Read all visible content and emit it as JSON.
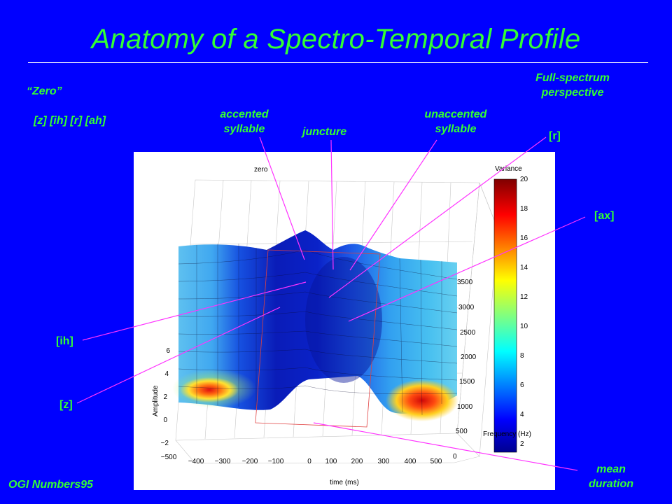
{
  "title": "Anatomy of a Spectro-Temporal Profile",
  "labels": {
    "zero": "“Zero”",
    "phonemes": "[z] [ih] [r] [ah]",
    "accented": "accented\nsyllable",
    "juncture": "juncture",
    "unaccented": "unaccented\nsyllable",
    "full_spectrum": "Full-spectrum\nperspective",
    "r": "[r]",
    "ax": "[ax]",
    "ih": "[ih]",
    "z": "[z]",
    "mean_duration": "mean\nduration",
    "corpus": "OGI Numbers95"
  },
  "colors": {
    "background": "#0000ff",
    "title": "#33ff33",
    "callout_line": "#ff33ff"
  },
  "figure": {
    "plot_title": "zero",
    "colorbar_title": "Variance",
    "colorbar_ticks": [
      "2",
      "4",
      "6",
      "8",
      "10",
      "12",
      "14",
      "16",
      "18",
      "20"
    ],
    "x_label": "time (ms)",
    "x_ticks": [
      "−500",
      "−400",
      "−300",
      "−200",
      "−100",
      "0",
      "100",
      "200",
      "300",
      "400",
      "500"
    ],
    "y_label": "Frequency (Hz)",
    "y_ticks": [
      "0",
      "500",
      "1000",
      "1500",
      "2000",
      "2500",
      "3000",
      "3500"
    ],
    "z_label": "Amplitude",
    "z_ticks": [
      "−2",
      "0",
      "2",
      "4",
      "6"
    ]
  }
}
